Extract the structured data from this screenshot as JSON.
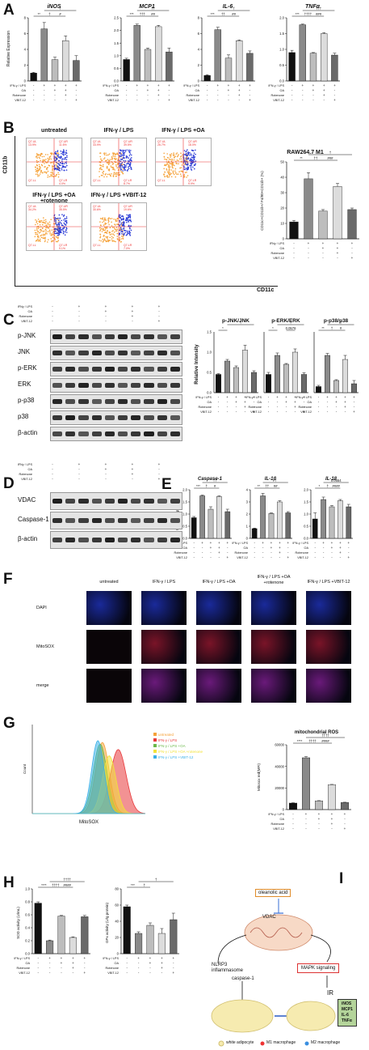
{
  "panels": [
    "A",
    "B",
    "C",
    "D",
    "E",
    "F",
    "G",
    "H",
    "I"
  ],
  "common": {
    "ifn_lps": "IFN-γ / LPS",
    "ifn_lps_b": "IFNγ / LPS",
    "oa": "OA",
    "rotenone": "Rotenone",
    "vbit": "VBIT-12",
    "rows": [
      [
        "-",
        "+",
        "+",
        "+",
        "+"
      ],
      [
        "-",
        "-",
        "+",
        "+",
        "-"
      ],
      [
        "-",
        "-",
        "-",
        "+",
        "-"
      ],
      [
        "-",
        "-",
        "-",
        "-",
        "+"
      ]
    ]
  },
  "panelA": {
    "ylabel": "Relative Expression",
    "charts": [
      {
        "title": "iNOS",
        "ylim": [
          0,
          8
        ],
        "ticks": [
          "0",
          "2",
          "4",
          "6",
          "8"
        ],
        "values": [
          1.0,
          6.6,
          2.7,
          5.1,
          2.6
        ],
        "errors": [
          0.1,
          0.8,
          0.3,
          0.6,
          0.6
        ],
        "sig": [
          {
            "t": "**",
            "a": 0,
            "b": 1,
            "lvl": 0
          },
          {
            "t": "†",
            "a": 1,
            "b": 2,
            "lvl": 0
          },
          {
            "t": "#",
            "a": 2,
            "b": 3,
            "lvl": 0
          },
          {
            "t": "†",
            "a": 1,
            "b": 4,
            "lvl": 1
          }
        ]
      },
      {
        "title": "MCP1",
        "ylim": [
          0,
          2.5
        ],
        "ticks": [
          "0.0",
          "0.5",
          "1.0",
          "1.5",
          "2.0",
          "2.5"
        ],
        "values": [
          0.85,
          2.2,
          1.25,
          2.15,
          1.15
        ],
        "errors": [
          0.05,
          0.05,
          0.05,
          0.05,
          0.15
        ],
        "sig": [
          {
            "t": "***",
            "a": 0,
            "b": 1,
            "lvl": 0
          },
          {
            "t": "†††",
            "a": 1,
            "b": 2,
            "lvl": 0
          },
          {
            "t": "##",
            "a": 2,
            "b": 3,
            "lvl": 0
          },
          {
            "t": "††",
            "a": 1,
            "b": 4,
            "lvl": 1
          }
        ]
      },
      {
        "title": "IL-6",
        "ylim": [
          0,
          8
        ],
        "ticks": [
          "0",
          "2",
          "4",
          "6",
          "8"
        ],
        "values": [
          0.7,
          6.5,
          2.9,
          5.1,
          3.5
        ],
        "errors": [
          0.1,
          0.3,
          0.4,
          0.1,
          0.3
        ],
        "sig": [
          {
            "t": "***",
            "a": 0,
            "b": 1,
            "lvl": 0
          },
          {
            "t": "††",
            "a": 1,
            "b": 2,
            "lvl": 0
          },
          {
            "t": "##",
            "a": 2,
            "b": 3,
            "lvl": 0
          },
          {
            "t": "†",
            "a": 1,
            "b": 4,
            "lvl": 1
          }
        ]
      },
      {
        "title": "TNFα",
        "ylim": [
          0,
          2.0
        ],
        "ticks": [
          "0.0",
          "0.5",
          "1.0",
          "1.5",
          "2.0"
        ],
        "values": [
          0.9,
          1.78,
          0.88,
          1.5,
          0.82
        ],
        "errors": [
          0.07,
          0.02,
          0.02,
          0.03,
          0.06
        ],
        "sig": [
          {
            "t": "***",
            "a": 0,
            "b": 1,
            "lvl": 0
          },
          {
            "t": "††††",
            "a": 1,
            "b": 2,
            "lvl": 0
          },
          {
            "t": "###",
            "a": 2,
            "b": 3,
            "lvl": 0
          },
          {
            "t": "†††",
            "a": 1,
            "b": 4,
            "lvl": 1
          }
        ]
      }
    ]
  },
  "panelB": {
    "yaxis": "CD11b",
    "xaxis": "CD11c",
    "plots": [
      {
        "label": "untreated",
        "q": [
          "Q7-UL",
          "Q7-UR",
          "Q7-LL",
          "Q7-LR"
        ],
        "v": [
          "13.9%",
          "11.6%",
          "",
          "4.0%"
        ]
      },
      {
        "label": "IFN-γ / LPS",
        "q": [
          "Q7-UL",
          "Q7-UR",
          "Q7-LL",
          "Q7-LR"
        ],
        "v": [
          "33.9%",
          "39.5%",
          "",
          "8.7%"
        ]
      },
      {
        "label": "IFN-γ / LPS +OA",
        "q": [
          "Q7-UL",
          "Q7-UR",
          "Q7-LL",
          "Q7-LR"
        ],
        "v": [
          "26.7%",
          "18.0%",
          "",
          "9.9%"
        ]
      },
      {
        "label": "IFN-γ / LPS +OA +rotenone",
        "q": [
          "Q7-UL",
          "Q7-UR",
          "Q7-LL",
          "Q7-LR"
        ],
        "v": [
          "34.2%",
          "35.5%",
          "",
          "9.1%"
        ]
      },
      {
        "label": "IFN-γ / LPS +VBIT-12",
        "q": [
          "Q7-UL",
          "Q7-UR",
          "Q7-LL",
          "Q7-LR"
        ],
        "v": [
          "30.6%",
          "19.6%",
          "",
          "7.0%"
        ]
      }
    ],
    "plot_axis_y": "PerCP-A",
    "plot_axis_x": "APC-A",
    "bar": {
      "title": "RAW264.7 M1",
      "ylabel": "CD11c+CD11b+/ F4/80+CD11b+ (%)",
      "ylim": [
        0,
        50
      ],
      "ticks": [
        "0",
        "10",
        "20",
        "30",
        "40",
        "50"
      ],
      "values": [
        11,
        39,
        18,
        34,
        19
      ],
      "errors": [
        1,
        4,
        1,
        2,
        1
      ],
      "sig": [
        {
          "t": "**",
          "a": 0,
          "b": 1,
          "lvl": 0
        },
        {
          "t": "††",
          "a": 1,
          "b": 2,
          "lvl": 0
        },
        {
          "t": "###",
          "a": 2,
          "b": 3,
          "lvl": 0
        },
        {
          "t": "†",
          "a": 1,
          "b": 4,
          "lvl": 1
        }
      ]
    }
  },
  "panelC": {
    "blots": [
      "p-JNK",
      "JNK",
      "p-ERK",
      "ERK",
      "p-p38",
      "p38",
      "β-actin"
    ],
    "chart": {
      "ylabel": "Relative Intensity",
      "ylim": [
        0,
        1.5
      ],
      "ticks": [
        "0.0",
        "0.5",
        "1.0",
        "1.5"
      ],
      "groups": [
        {
          "title": "p-JNK/JNK",
          "values": [
            0.45,
            0.78,
            0.62,
            1.05,
            0.5
          ],
          "errors": [
            0.02,
            0.04,
            0.04,
            0.12,
            0.04
          ],
          "sig": [
            {
              "t": "*",
              "a": 0,
              "b": 1,
              "lvl": 0
            },
            {
              "t": "†",
              "a": 1,
              "b": 4,
              "lvl": 1
            }
          ]
        },
        {
          "title": "p-ERK/ERK",
          "values": [
            0.45,
            0.92,
            0.7,
            1.0,
            0.45
          ],
          "errors": [
            0.05,
            0.06,
            0.02,
            0.08,
            0.04
          ],
          "sig": [
            {
              "t": "*",
              "a": 0,
              "b": 1,
              "lvl": 0
            },
            {
              "t": "0.0576",
              "a": 2,
              "b": 3,
              "lvl": 0
            },
            {
              "t": "†",
              "a": 1,
              "b": 4,
              "lvl": 1
            }
          ]
        },
        {
          "title": "p-p38/p38",
          "values": [
            0.15,
            0.92,
            0.3,
            0.82,
            0.22
          ],
          "errors": [
            0.03,
            0.05,
            0.02,
            0.1,
            0.08
          ],
          "sig": [
            {
              "t": "**",
              "a": 0,
              "b": 1,
              "lvl": 0
            },
            {
              "t": "†",
              "a": 1,
              "b": 2,
              "lvl": 0
            },
            {
              "t": "#",
              "a": 2,
              "b": 3,
              "lvl": 0
            },
            {
              "t": "†",
              "a": 1,
              "b": 4,
              "lvl": 1
            }
          ]
        }
      ]
    }
  },
  "panelD": {
    "blots": [
      "VDAC",
      "Caspase-1",
      "β-actin"
    ]
  },
  "panelE": {
    "ylabel": "Relative Expression",
    "charts": [
      {
        "title": "Caspase-1",
        "ylim": [
          0,
          2.0
        ],
        "ticks": [
          "0.0",
          "0.5",
          "1.0",
          "1.5",
          "2.0"
        ],
        "values": [
          0.85,
          1.75,
          1.2,
          1.72,
          1.1
        ],
        "errors": [
          0.05,
          0.03,
          0.1,
          0.03,
          0.1
        ],
        "sig": [
          {
            "t": "***",
            "a": 0,
            "b": 1,
            "lvl": 0
          },
          {
            "t": "†",
            "a": 1,
            "b": 2,
            "lvl": 0
          },
          {
            "t": "#",
            "a": 2,
            "b": 3,
            "lvl": 0
          },
          {
            "t": "††",
            "a": 1,
            "b": 4,
            "lvl": 1
          }
        ]
      },
      {
        "title": "IL-1β",
        "ylim": [
          0,
          4
        ],
        "ticks": [
          "0",
          "1",
          "2",
          "3",
          "4"
        ],
        "values": [
          0.8,
          3.5,
          2.05,
          3.0,
          2.1
        ],
        "errors": [
          0.05,
          0.2,
          0.05,
          0.1,
          0.1
        ],
        "sig": [
          {
            "t": "**",
            "a": 0,
            "b": 1,
            "lvl": 0
          },
          {
            "t": "††",
            "a": 1,
            "b": 2,
            "lvl": 0
          },
          {
            "t": "##",
            "a": 2,
            "b": 3,
            "lvl": 0
          },
          {
            "t": "†",
            "a": 1,
            "b": 4,
            "lvl": 1
          }
        ]
      },
      {
        "title": "IL-18",
        "ylim": [
          0,
          2.0
        ],
        "ticks": [
          "0.0",
          "0.5",
          "1.0",
          "1.5",
          "2.0"
        ],
        "values": [
          0.8,
          1.6,
          1.3,
          1.55,
          1.3
        ],
        "errors": [
          0.25,
          0.1,
          0.05,
          0.05,
          0.1
        ],
        "sig": [
          {
            "t": "*",
            "a": 0,
            "b": 1,
            "lvl": 0
          },
          {
            "t": "†",
            "a": 1,
            "b": 2,
            "lvl": 0
          },
          {
            "t": "####",
            "a": 2,
            "b": 3,
            "lvl": 0
          },
          {
            "t": "0.0554",
            "a": 1,
            "b": 4,
            "lvl": 1
          }
        ]
      }
    ]
  },
  "panelF": {
    "cols": [
      "untreated",
      "IFN-γ / LPS",
      "IFN-γ / LPS +OA",
      "IFN-γ / LPS +OA +rotenone",
      "IFN-γ / LPS +VBIT-12"
    ],
    "rows": [
      "DAPI",
      "MitoSOX",
      "merge"
    ]
  },
  "panelG": {
    "hist": {
      "xlabel": "MitoSOX",
      "ylabel": "Count",
      "legend": [
        {
          "name": "untreated",
          "color": "#f5a23a"
        },
        {
          "name": "IFN-γ / LPS",
          "color": "#e8393a"
        },
        {
          "name": "IFN-γ / LPS +OA",
          "color": "#6bb84a"
        },
        {
          "name": "IFN-γ / LPS +OA +rotenone",
          "color": "#f2e23a"
        },
        {
          "name": "IFN-γ / LPS +VBIT-12",
          "color": "#3ab0e8"
        }
      ]
    },
    "bar": {
      "title": "mitochondrial ROS",
      "ylabel": "Mitosox red(MFI)",
      "ylim": [
        0,
        60000
      ],
      "ticks": [
        "0",
        "20000",
        "40000",
        "60000"
      ],
      "values": [
        6000,
        48000,
        8000,
        23000,
        6500
      ],
      "errors": [
        300,
        1000,
        300,
        300,
        300
      ],
      "sig": [
        {
          "t": "****",
          "a": 0,
          "b": 1,
          "lvl": 0
        },
        {
          "t": "††††",
          "a": 1,
          "b": 2,
          "lvl": 0
        },
        {
          "t": "####",
          "a": 2,
          "b": 3,
          "lvl": 0
        },
        {
          "t": "††††",
          "a": 1,
          "b": 4,
          "lvl": 1
        }
      ]
    }
  },
  "panelH": {
    "charts": [
      {
        "ylabel": "SOD activity (U/mL)",
        "ylim": [
          0,
          1.0
        ],
        "ticks": [
          "0.0",
          "0.2",
          "0.4",
          "0.6",
          "0.8",
          "1.0"
        ],
        "values": [
          0.78,
          0.2,
          0.58,
          0.25,
          0.57
        ],
        "errors": [
          0.02,
          0.01,
          0.01,
          0.01,
          0.02
        ],
        "sig": [
          {
            "t": "****",
            "a": 0,
            "b": 1,
            "lvl": 0
          },
          {
            "t": "††††",
            "a": 1,
            "b": 2,
            "lvl": 0
          },
          {
            "t": "####",
            "a": 2,
            "b": 3,
            "lvl": 0
          },
          {
            "t": "††††",
            "a": 1,
            "b": 4,
            "lvl": 1
          }
        ]
      },
      {
        "ylabel": "GPx activity (U/g protein)",
        "ylim": [
          0,
          80
        ],
        "ticks": [
          "0",
          "20",
          "40",
          "60",
          "80"
        ],
        "values": [
          58,
          25,
          35,
          25,
          42
        ],
        "errors": [
          2,
          2,
          3,
          6,
          8
        ],
        "sig": [
          {
            "t": "***",
            "a": 0,
            "b": 1,
            "lvl": 0
          },
          {
            "t": "†",
            "a": 1,
            "b": 2,
            "lvl": 0
          },
          {
            "t": "†",
            "a": 1,
            "b": 4,
            "lvl": 1
          }
        ]
      }
    ]
  },
  "panelI": {
    "oleanolic": "oleanolic acid",
    "vdac": "VDAC",
    "nlrp3": "NLRP3 inflammasome",
    "casp": "caspase-1",
    "mapk": "MAPK signaling",
    "ir": "IR",
    "outputs": [
      "iNOS",
      "MCP1",
      "IL-6",
      "TNFα"
    ],
    "legend": [
      "white adipocyte",
      "M1 macrophage",
      "M2 macrophage"
    ]
  },
  "colors": {
    "bars": [
      "#111111",
      "#8a8a8a",
      "#bdbdbd",
      "#dcdcdc",
      "#6a6a6a"
    ]
  }
}
